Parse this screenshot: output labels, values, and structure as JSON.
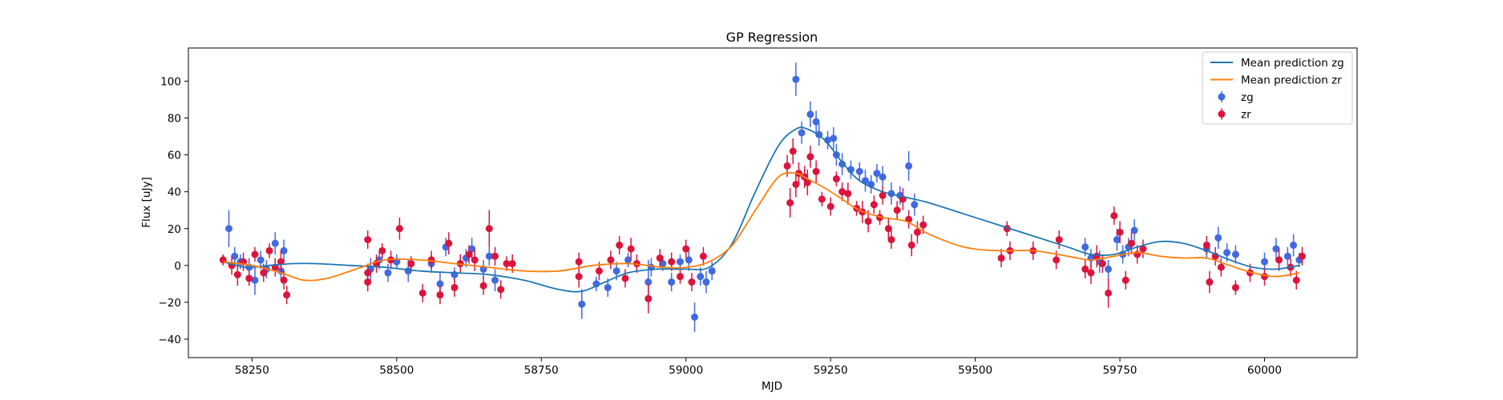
{
  "chart_data": {
    "type": "scatter",
    "title": "GP Regression",
    "xlabel": "MJD",
    "ylabel": "Flux [uJy]",
    "xlim": [
      58140,
      60160
    ],
    "ylim": [
      -50,
      118
    ],
    "xticks": [
      58250,
      58500,
      58750,
      59000,
      59250,
      59500,
      59750,
      60000
    ],
    "yticks": [
      -40,
      -20,
      0,
      20,
      40,
      60,
      80,
      100
    ],
    "legend_position": "top-right",
    "grid": false,
    "lines": [
      {
        "name": "Mean prediction zg",
        "color": "#1f77b4",
        "x": [
          58200,
          58240,
          58280,
          58320,
          58360,
          58420,
          58480,
          58540,
          58600,
          58660,
          58720,
          58780,
          58820,
          58860,
          58900,
          58950,
          59000,
          59040,
          59080,
          59120,
          59160,
          59190,
          59210,
          59240,
          59270,
          59300,
          59340,
          59380,
          59420,
          59480,
          59540,
          59600,
          59660,
          59700,
          59740,
          59780,
          59820,
          59860,
          59900,
          59940,
          59980,
          60020,
          60060
        ],
        "y": [
          2,
          -1,
          0,
          1,
          1,
          0,
          -1,
          -3,
          -4,
          -5,
          -8,
          -13,
          -14,
          -9,
          -4,
          -2,
          -2,
          -1,
          12,
          40,
          65,
          74,
          74,
          68,
          56,
          46,
          40,
          37,
          34,
          28,
          22,
          16,
          10,
          6,
          6,
          10,
          13,
          12,
          8,
          3,
          -1,
          -2,
          0
        ]
      },
      {
        "name": "Mean prediction zr",
        "color": "#ff7f0e",
        "x": [
          58200,
          58250,
          58300,
          58340,
          58380,
          58430,
          58480,
          58540,
          58600,
          58660,
          58720,
          58780,
          58840,
          58900,
          58960,
          59000,
          59040,
          59080,
          59120,
          59160,
          59190,
          59210,
          59240,
          59270,
          59300,
          59340,
          59380,
          59420,
          59480,
          59540,
          59600,
          59660,
          59700,
          59740,
          59780,
          59820,
          59860,
          59900,
          59940,
          59980,
          60020,
          60060
        ],
        "y": [
          2,
          0,
          -4,
          -8,
          -7,
          -2,
          3,
          3,
          1,
          -1,
          -3,
          -3,
          0,
          1,
          -1,
          -1,
          2,
          11,
          30,
          48,
          50,
          47,
          42,
          36,
          30,
          26,
          24,
          17,
          10,
          8,
          8,
          5,
          3,
          5,
          7,
          5,
          4,
          4,
          0,
          -4,
          -6,
          -4
        ]
      }
    ],
    "series": [
      {
        "name": "zg",
        "color": "#4169e1",
        "points": [
          [
            58210,
            20,
            10
          ],
          [
            58220,
            5,
            5
          ],
          [
            58230,
            2,
            4
          ],
          [
            58245,
            -1,
            5
          ],
          [
            58255,
            -8,
            8
          ],
          [
            58265,
            3,
            5
          ],
          [
            58275,
            -2,
            5
          ],
          [
            58290,
            12,
            6
          ],
          [
            58300,
            -3,
            5
          ],
          [
            58305,
            8,
            6
          ],
          [
            58455,
            -2,
            6
          ],
          [
            58470,
            3,
            5
          ],
          [
            58485,
            -4,
            5
          ],
          [
            58500,
            2,
            4
          ],
          [
            58520,
            -3,
            6
          ],
          [
            58560,
            1,
            5
          ],
          [
            58575,
            -10,
            6
          ],
          [
            58585,
            10,
            5
          ],
          [
            58600,
            -5,
            4
          ],
          [
            58620,
            4,
            5
          ],
          [
            58630,
            9,
            6
          ],
          [
            58650,
            -2,
            5
          ],
          [
            58660,
            5,
            5
          ],
          [
            58670,
            -8,
            6
          ],
          [
            58820,
            -21,
            8
          ],
          [
            58845,
            -10,
            4
          ],
          [
            58865,
            -12,
            5
          ],
          [
            58880,
            -3,
            5
          ],
          [
            58900,
            3,
            4
          ],
          [
            58935,
            -9,
            12
          ],
          [
            58940,
            -1,
            5
          ],
          [
            58960,
            1,
            4
          ],
          [
            58975,
            -9,
            5
          ],
          [
            58990,
            2,
            4
          ],
          [
            59005,
            3,
            6
          ],
          [
            59015,
            -28,
            8
          ],
          [
            59025,
            -6,
            5
          ],
          [
            59035,
            -9,
            6
          ],
          [
            59045,
            -3,
            5
          ],
          [
            59190,
            101,
            9
          ],
          [
            59200,
            72,
            6
          ],
          [
            59215,
            82,
            7
          ],
          [
            59225,
            78,
            6
          ],
          [
            59230,
            71,
            6
          ],
          [
            59245,
            68,
            5
          ],
          [
            59255,
            69,
            6
          ],
          [
            59260,
            60,
            6
          ],
          [
            59270,
            55,
            6
          ],
          [
            59285,
            52,
            5
          ],
          [
            59300,
            51,
            5
          ],
          [
            59310,
            46,
            6
          ],
          [
            59320,
            44,
            5
          ],
          [
            59330,
            50,
            5
          ],
          [
            59340,
            48,
            6
          ],
          [
            59355,
            39,
            6
          ],
          [
            59370,
            38,
            5
          ],
          [
            59385,
            54,
            8
          ],
          [
            59395,
            33,
            6
          ],
          [
            59690,
            10,
            5
          ],
          [
            59700,
            4,
            5
          ],
          [
            59715,
            2,
            6
          ],
          [
            59730,
            -2,
            5
          ],
          [
            59745,
            14,
            6
          ],
          [
            59755,
            6,
            5
          ],
          [
            59765,
            10,
            5
          ],
          [
            59775,
            19,
            6
          ],
          [
            59900,
            9,
            5
          ],
          [
            59920,
            15,
            6
          ],
          [
            59935,
            7,
            5
          ],
          [
            59950,
            6,
            5
          ],
          [
            60000,
            2,
            5
          ],
          [
            60020,
            9,
            6
          ],
          [
            60040,
            5,
            5
          ],
          [
            60050,
            11,
            6
          ],
          [
            60060,
            3,
            4
          ]
        ]
      },
      {
        "name": "zr",
        "color": "#dc143c",
        "points": [
          [
            58200,
            3,
            3
          ],
          [
            58215,
            0,
            5
          ],
          [
            58225,
            -5,
            6
          ],
          [
            58235,
            2,
            5
          ],
          [
            58245,
            -7,
            4
          ],
          [
            58255,
            6,
            4
          ],
          [
            58270,
            -4,
            5
          ],
          [
            58280,
            8,
            4
          ],
          [
            58290,
            -1,
            5
          ],
          [
            58300,
            2,
            6
          ],
          [
            58305,
            -8,
            5
          ],
          [
            58310,
            -16,
            5
          ],
          [
            58450,
            14,
            5
          ],
          [
            58450,
            -4,
            5
          ],
          [
            58450,
            -9,
            5
          ],
          [
            58465,
            1,
            5
          ],
          [
            58475,
            8,
            4
          ],
          [
            58490,
            3,
            5
          ],
          [
            58505,
            20,
            6
          ],
          [
            58525,
            1,
            4
          ],
          [
            58545,
            -15,
            5
          ],
          [
            58560,
            3,
            5
          ],
          [
            58575,
            -16,
            5
          ],
          [
            58590,
            12,
            6
          ],
          [
            58600,
            -12,
            5
          ],
          [
            58610,
            1,
            5
          ],
          [
            58625,
            6,
            5
          ],
          [
            58635,
            3,
            6
          ],
          [
            58650,
            -11,
            5
          ],
          [
            58660,
            20,
            10
          ],
          [
            58670,
            5,
            5
          ],
          [
            58680,
            -13,
            5
          ],
          [
            58690,
            1,
            4
          ],
          [
            58700,
            1,
            5
          ],
          [
            58815,
            2,
            5
          ],
          [
            58815,
            -6,
            6
          ],
          [
            58850,
            -3,
            5
          ],
          [
            58870,
            3,
            5
          ],
          [
            58885,
            11,
            5
          ],
          [
            58895,
            -7,
            5
          ],
          [
            58905,
            9,
            6
          ],
          [
            58915,
            1,
            5
          ],
          [
            58935,
            -18,
            8
          ],
          [
            58955,
            4,
            5
          ],
          [
            58975,
            2,
            5
          ],
          [
            58990,
            -6,
            4
          ],
          [
            59000,
            9,
            5
          ],
          [
            59010,
            -9,
            5
          ],
          [
            59030,
            5,
            5
          ],
          [
            59175,
            54,
            6
          ],
          [
            59180,
            34,
            8
          ],
          [
            59185,
            62,
            7
          ],
          [
            59190,
            44,
            7
          ],
          [
            59195,
            50,
            6
          ],
          [
            59205,
            48,
            6
          ],
          [
            59210,
            45,
            7
          ],
          [
            59215,
            59,
            6
          ],
          [
            59225,
            51,
            6
          ],
          [
            59235,
            36,
            4
          ],
          [
            59250,
            32,
            5
          ],
          [
            59260,
            47,
            4
          ],
          [
            59270,
            40,
            5
          ],
          [
            59280,
            39,
            6
          ],
          [
            59295,
            31,
            4
          ],
          [
            59305,
            29,
            6
          ],
          [
            59315,
            24,
            6
          ],
          [
            59325,
            33,
            5
          ],
          [
            59335,
            26,
            4
          ],
          [
            59340,
            38,
            5
          ],
          [
            59350,
            20,
            6
          ],
          [
            59355,
            14,
            5
          ],
          [
            59365,
            30,
            5
          ],
          [
            59375,
            36,
            6
          ],
          [
            59385,
            25,
            5
          ],
          [
            59390,
            11,
            6
          ],
          [
            59400,
            18,
            6
          ],
          [
            59410,
            22,
            5
          ],
          [
            59545,
            4,
            5
          ],
          [
            59555,
            20,
            4
          ],
          [
            59560,
            8,
            5
          ],
          [
            59600,
            8,
            5
          ],
          [
            59640,
            3,
            5
          ],
          [
            59645,
            14,
            5
          ],
          [
            59690,
            -2,
            5
          ],
          [
            59700,
            -4,
            6
          ],
          [
            59710,
            5,
            6
          ],
          [
            59720,
            1,
            5
          ],
          [
            59730,
            -15,
            8
          ],
          [
            59740,
            27,
            5
          ],
          [
            59750,
            18,
            6
          ],
          [
            59760,
            -8,
            5
          ],
          [
            59770,
            12,
            6
          ],
          [
            59780,
            6,
            5
          ],
          [
            59790,
            9,
            5
          ],
          [
            59900,
            11,
            5
          ],
          [
            59905,
            -9,
            6
          ],
          [
            59915,
            5,
            5
          ],
          [
            59925,
            -1,
            5
          ],
          [
            59950,
            -12,
            4
          ],
          [
            59975,
            -4,
            5
          ],
          [
            60000,
            -6,
            5
          ],
          [
            60025,
            3,
            6
          ],
          [
            60045,
            -1,
            5
          ],
          [
            60055,
            -8,
            5
          ],
          [
            60065,
            5,
            5
          ]
        ]
      }
    ]
  }
}
